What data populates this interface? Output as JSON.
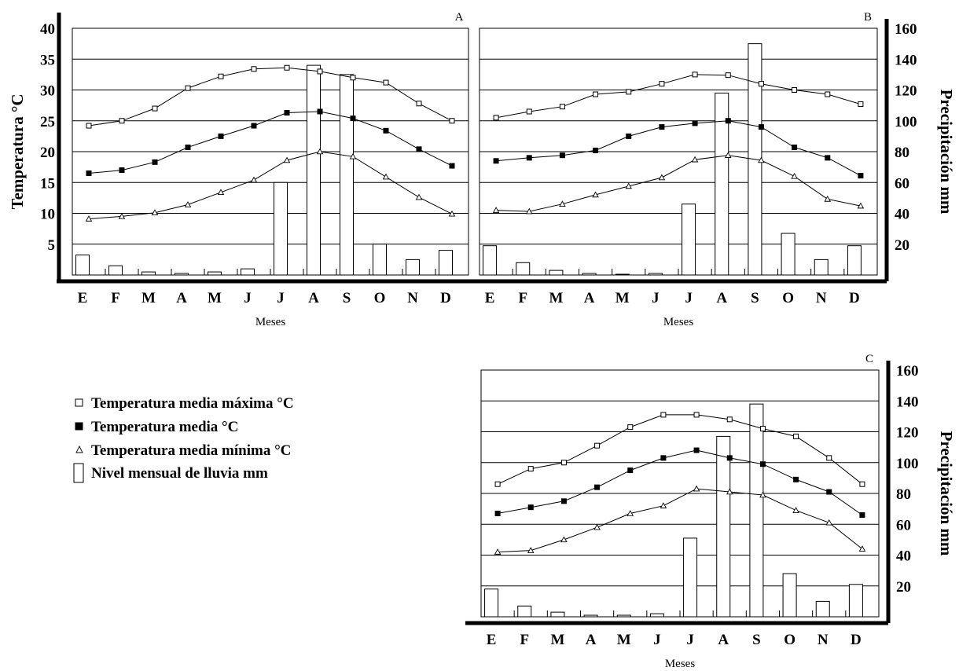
{
  "legend": {
    "items": [
      {
        "key": "max",
        "label": "Temperatura media máxima °C"
      },
      {
        "key": "mean",
        "label": "Temperatura media °C"
      },
      {
        "key": "min",
        "label": "Temperatura media mínima °C"
      },
      {
        "key": "rain",
        "label": "Nivel mensual de lluvia mm"
      }
    ]
  },
  "chart_data": [
    {
      "type": "line",
      "panel": "A",
      "xlabel": "Meses",
      "ylabel": "Temperatura °C",
      "ylabel_right": "",
      "categories": [
        "E",
        "F",
        "M",
        "A",
        "M",
        "J",
        "J",
        "A",
        "S",
        "O",
        "N",
        "D"
      ],
      "ylim": [
        0,
        40
      ],
      "yticks": [
        5,
        10,
        15,
        20,
        25,
        30,
        35,
        40
      ],
      "y2lim": [
        0,
        160
      ],
      "y2ticks": [],
      "grid": true,
      "series": [
        {
          "key": "max",
          "values": [
            24.2,
            25.0,
            27.0,
            30.3,
            32.2,
            33.4,
            33.6,
            33.0,
            32.0,
            31.2,
            27.8,
            25.0
          ]
        },
        {
          "key": "mean",
          "values": [
            16.5,
            17.0,
            18.3,
            20.7,
            22.5,
            24.2,
            26.3,
            26.5,
            25.4,
            23.4,
            20.4,
            17.7
          ]
        },
        {
          "key": "min",
          "values": [
            9.1,
            9.5,
            10.1,
            11.4,
            13.4,
            15.4,
            18.6,
            20.0,
            19.2,
            15.9,
            12.6,
            9.9
          ]
        },
        {
          "key": "rain",
          "axis": "right",
          "values": [
            13,
            6,
            2,
            1,
            2,
            4,
            60,
            136,
            130,
            20,
            10,
            16
          ]
        }
      ]
    },
    {
      "type": "line",
      "panel": "B",
      "xlabel": "Meses",
      "ylabel": "",
      "ylabel_right": "Precipitación  mm",
      "categories": [
        "E",
        "F",
        "M",
        "A",
        "M",
        "J",
        "J",
        "A",
        "S",
        "O",
        "N",
        "D"
      ],
      "ylim": [
        0,
        40
      ],
      "yticks": [],
      "y2lim": [
        0,
        160
      ],
      "y2ticks": [
        20,
        40,
        60,
        80,
        100,
        120,
        140,
        160
      ],
      "grid": true,
      "series": [
        {
          "key": "max",
          "values": [
            25.5,
            26.5,
            27.3,
            29.3,
            29.7,
            31.0,
            32.5,
            32.4,
            31.0,
            30.0,
            29.3,
            27.7
          ]
        },
        {
          "key": "mean",
          "values": [
            18.5,
            19.0,
            19.4,
            20.2,
            22.5,
            24.0,
            24.6,
            25.0,
            24.0,
            20.7,
            19.0,
            16.1
          ]
        },
        {
          "key": "min",
          "values": [
            10.5,
            10.3,
            11.5,
            13.0,
            14.4,
            15.8,
            18.7,
            19.4,
            18.6,
            16.0,
            12.3,
            11.2
          ]
        },
        {
          "key": "rain",
          "axis": "right",
          "values": [
            19,
            8,
            3,
            1,
            0.5,
            1,
            46,
            118,
            150,
            27,
            10,
            19
          ]
        }
      ]
    },
    {
      "type": "line",
      "panel": "C",
      "xlabel": "Meses",
      "ylabel": "",
      "ylabel_right": "Precipitación  mm",
      "categories": [
        "E",
        "F",
        "M",
        "A",
        "M",
        "J",
        "J",
        "A",
        "S",
        "O",
        "N",
        "D"
      ],
      "ylim": [
        0,
        160
      ],
      "yticks": [],
      "y2lim": [
        0,
        160
      ],
      "y2ticks": [
        20,
        40,
        60,
        80,
        100,
        120,
        140,
        160
      ],
      "grid": true,
      "series": [
        {
          "key": "max",
          "values": [
            86,
            96,
            100,
            111,
            123,
            131,
            131,
            128,
            122,
            117,
            103,
            86
          ]
        },
        {
          "key": "mean",
          "values": [
            67,
            71,
            75,
            84,
            95,
            103,
            108,
            103,
            99,
            89,
            81,
            66
          ]
        },
        {
          "key": "min",
          "values": [
            42,
            43,
            50,
            58,
            67,
            72,
            83,
            81,
            79,
            69,
            61,
            44
          ]
        },
        {
          "key": "rain",
          "axis": "right",
          "values": [
            18,
            7,
            3,
            1,
            1,
            2,
            51,
            117,
            138,
            28,
            10,
            21
          ]
        }
      ]
    }
  ]
}
